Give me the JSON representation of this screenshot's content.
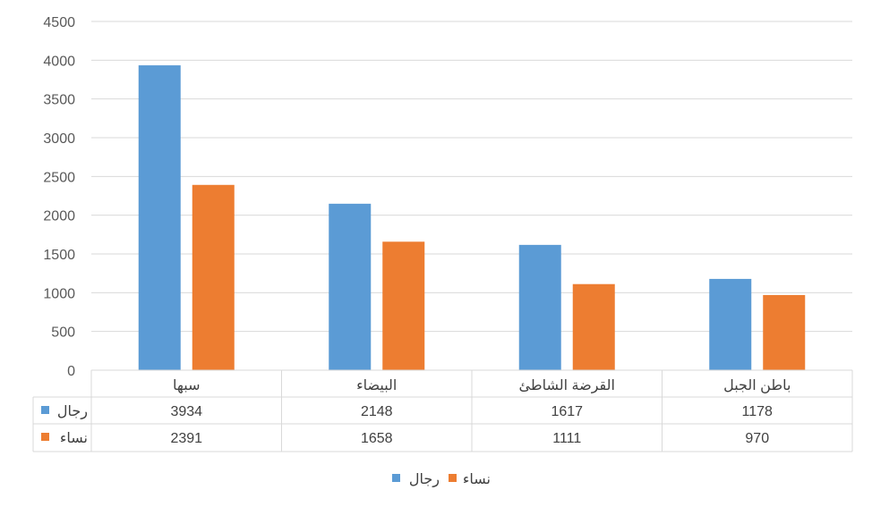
{
  "chart_data": {
    "type": "bar",
    "categories": [
      "سبها",
      "البيضاء",
      "القرضة الشاطئ",
      "باطن الجبل"
    ],
    "series": [
      {
        "name": "رجال",
        "values": [
          3934,
          2148,
          1617,
          1178
        ],
        "color": "#5B9BD5"
      },
      {
        "name": "نساء",
        "values": [
          2391,
          1658,
          1111,
          970
        ],
        "color": "#ED7D31"
      }
    ],
    "yticks": [
      "0",
      "500",
      "1000",
      "1500",
      "2000",
      "2500",
      "3000",
      "3500",
      "4000",
      "4500"
    ],
    "ylim": [
      0,
      4500
    ],
    "grid": true,
    "data_table": true,
    "legend_position": "bottom"
  }
}
